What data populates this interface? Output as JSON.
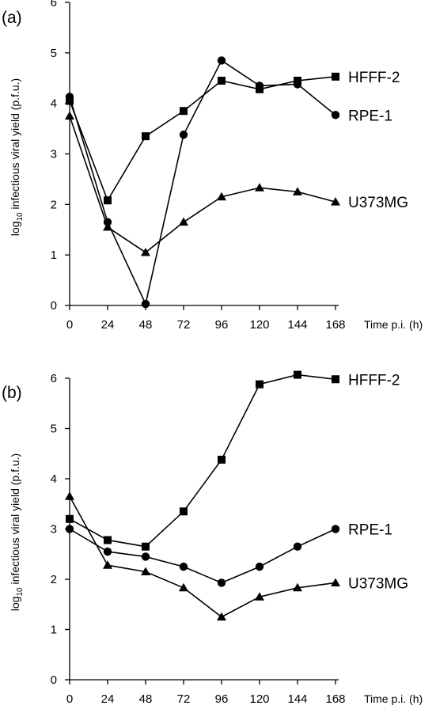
{
  "chart_data": [
    {
      "type": "line",
      "panel_label": "(a)",
      "xlabel": "Time p.i. (h)",
      "ylabel": {
        "prefix": "log",
        "subscript": "10",
        "suffix": " infectious viral yield (p.f.u.)"
      },
      "x": [
        0,
        24,
        48,
        72,
        96,
        120,
        144,
        168
      ],
      "x_ticks": [
        "0",
        "24",
        "48",
        "72",
        "96",
        "120",
        "144",
        "168"
      ],
      "y_ticks": [
        "0",
        "1",
        "2",
        "3",
        "4",
        "5",
        "6"
      ],
      "xlim": [
        0,
        168
      ],
      "ylim": [
        0,
        6
      ],
      "grid": false,
      "series": [
        {
          "name": "HFFF-2",
          "marker": "square",
          "values": [
            4.05,
            2.08,
            3.35,
            3.85,
            4.45,
            4.28,
            4.45,
            4.53
          ]
        },
        {
          "name": "RPE-1",
          "marker": "circle",
          "values": [
            4.13,
            1.65,
            0.03,
            3.38,
            4.85,
            4.35,
            4.38,
            3.77
          ]
        },
        {
          "name": "U373MG",
          "marker": "triangle",
          "values": [
            3.75,
            1.55,
            1.05,
            1.65,
            2.15,
            2.33,
            2.25,
            2.05
          ]
        }
      ]
    },
    {
      "type": "line",
      "panel_label": "(b)",
      "xlabel": "Time p.i. (h)",
      "ylabel": {
        "prefix": "log",
        "subscript": "10",
        "suffix": " infectious viral yield (p.f.u.)"
      },
      "x": [
        0,
        24,
        48,
        72,
        96,
        120,
        144,
        168
      ],
      "x_ticks": [
        "0",
        "24",
        "48",
        "72",
        "96",
        "120",
        "144",
        "168"
      ],
      "y_ticks": [
        "0",
        "1",
        "2",
        "3",
        "4",
        "5",
        "6"
      ],
      "xlim": [
        0,
        168
      ],
      "ylim": [
        0,
        6
      ],
      "grid": false,
      "series": [
        {
          "name": "HFFF-2",
          "marker": "square",
          "values": [
            3.2,
            2.78,
            2.65,
            3.35,
            4.38,
            5.88,
            6.07,
            5.98
          ]
        },
        {
          "name": "RPE-1",
          "marker": "circle",
          "values": [
            3.0,
            2.55,
            2.45,
            2.25,
            1.93,
            2.25,
            2.65,
            3.0
          ]
        },
        {
          "name": "U373MG",
          "marker": "triangle",
          "values": [
            3.65,
            2.28,
            2.15,
            1.83,
            1.25,
            1.65,
            1.83,
            1.93
          ]
        }
      ]
    }
  ]
}
